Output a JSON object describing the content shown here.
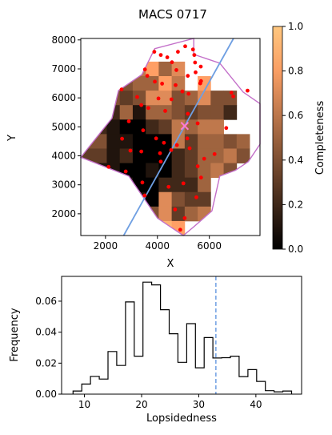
{
  "chart_data": [
    {
      "type": "heatmap",
      "title": "MACS 0717",
      "xlabel": "X",
      "ylabel": "Y",
      "xlim": [
        1050,
        7950
      ],
      "ylim": [
        1250,
        8050
      ],
      "xticks": [
        2000,
        4000,
        6000
      ],
      "yticks": [
        2000,
        3000,
        4000,
        5000,
        6000,
        7000,
        8000
      ],
      "colorbar": {
        "label": "Completeness",
        "range": [
          0.0,
          1.0
        ],
        "ticks": [
          "0.0",
          "0.2",
          "0.4",
          "0.6",
          "0.8",
          "1.0"
        ],
        "colormap": "copper"
      },
      "grid": {
        "x0": 1050,
        "y0": 1250,
        "cell_size": 500,
        "rows_from_top": [
          "...........6.",
          "..696857.....",
          "...45586.8...",
          "..4347745744.",
          "..2515543442.",
          "12100236566.",
          "4411000635545",
          "3312000235564",
          "411001023564.",
          "11.1002225...",
          "...1107433...",
          "....447356...",
          "......98....."
        ],
        "scale_note": "digit d = completeness d/10; '.' = outside survey footprint"
      },
      "footprint_outline": [
        [
          5400,
          8050
        ],
        [
          5400,
          7500
        ],
        [
          6400,
          7200
        ],
        [
          7300,
          6200
        ],
        [
          7950,
          5800
        ],
        [
          7950,
          4400
        ],
        [
          7500,
          3800
        ],
        [
          7000,
          3500
        ],
        [
          6400,
          3300
        ],
        [
          6100,
          2100
        ],
        [
          5400,
          1550
        ],
        [
          5000,
          1250
        ],
        [
          4000,
          1850
        ],
        [
          2900,
          3300
        ],
        [
          1050,
          3950
        ],
        [
          2250,
          5300
        ],
        [
          2500,
          6250
        ],
        [
          3400,
          6800
        ],
        [
          3900,
          7700
        ],
        [
          5400,
          8050
        ]
      ],
      "points": [
        [
          3880,
          7590
        ],
        [
          4130,
          7480
        ],
        [
          4380,
          7400
        ],
        [
          4560,
          7230
        ],
        [
          4790,
          7590
        ],
        [
          5070,
          7780
        ],
        [
          5370,
          7670
        ],
        [
          5420,
          7480
        ],
        [
          5450,
          7220
        ],
        [
          5670,
          7080
        ],
        [
          4730,
          6960
        ],
        [
          5170,
          6760
        ],
        [
          5470,
          6880
        ],
        [
          5680,
          6580
        ],
        [
          3520,
          6980
        ],
        [
          3610,
          6760
        ],
        [
          3900,
          6560
        ],
        [
          4180,
          6490
        ],
        [
          4700,
          6440
        ],
        [
          4960,
          6220
        ],
        [
          5200,
          6140
        ],
        [
          5650,
          6500
        ],
        [
          6850,
          6180
        ],
        [
          6920,
          6050
        ],
        [
          7470,
          6250
        ],
        [
          2620,
          6290
        ],
        [
          3220,
          6030
        ],
        [
          3380,
          5750
        ],
        [
          3650,
          5650
        ],
        [
          4040,
          5980
        ],
        [
          4540,
          5950
        ],
        [
          4300,
          5550
        ],
        [
          5170,
          5450
        ],
        [
          5550,
          5120
        ],
        [
          6650,
          4960
        ],
        [
          5150,
          4600
        ],
        [
          2900,
          5190
        ],
        [
          3450,
          4880
        ],
        [
          3950,
          4600
        ],
        [
          4250,
          4450
        ],
        [
          4750,
          4370
        ],
        [
          2640,
          4590
        ],
        [
          2960,
          4180
        ],
        [
          3380,
          4150
        ],
        [
          4100,
          4090
        ],
        [
          4530,
          4200
        ],
        [
          5240,
          4260
        ],
        [
          6200,
          4060
        ],
        [
          5800,
          3900
        ],
        [
          2120,
          3620
        ],
        [
          2780,
          3460
        ],
        [
          4130,
          3800
        ],
        [
          5550,
          3640
        ],
        [
          3420,
          3080
        ],
        [
          4430,
          2930
        ],
        [
          5680,
          3250
        ],
        [
          3510,
          2630
        ],
        [
          5000,
          3050
        ],
        [
          5500,
          2570
        ],
        [
          4680,
          2150
        ],
        [
          5050,
          1850
        ],
        [
          4880,
          1450
        ]
      ],
      "cluster_center": [
        5050,
        5030
      ],
      "line": {
        "x": [
          2700,
          6930
        ],
        "y": [
          1250,
          8050
        ]
      }
    },
    {
      "type": "histogram",
      "xlabel": "Lopsidedness",
      "ylabel": "Frequency",
      "xlim": [
        6,
        48
      ],
      "ylim": [
        0,
        0.076
      ],
      "xticks": [
        10,
        20,
        30,
        40
      ],
      "yticks": [
        "0.00",
        "0.02",
        "0.04",
        "0.06"
      ],
      "bin_edges": [
        8,
        9.53,
        11.06,
        12.59,
        14.12,
        15.65,
        17.18,
        18.71,
        20.24,
        21.77,
        23.3,
        24.83,
        26.36,
        27.89,
        29.42,
        30.95,
        32.48,
        34.01,
        35.54,
        37.07,
        38.6,
        40.13,
        41.66,
        43.19,
        44.72,
        46.25
      ],
      "values": [
        0.002,
        0.0065,
        0.0115,
        0.0097,
        0.0275,
        0.0185,
        0.0595,
        0.0245,
        0.0723,
        0.0705,
        0.0545,
        0.039,
        0.0205,
        0.0455,
        0.017,
        0.0365,
        0.0233,
        0.0235,
        0.0245,
        0.0113,
        0.0158,
        0.0082,
        0.0022,
        0.0015,
        0.002
      ],
      "vline": 33
    }
  ]
}
